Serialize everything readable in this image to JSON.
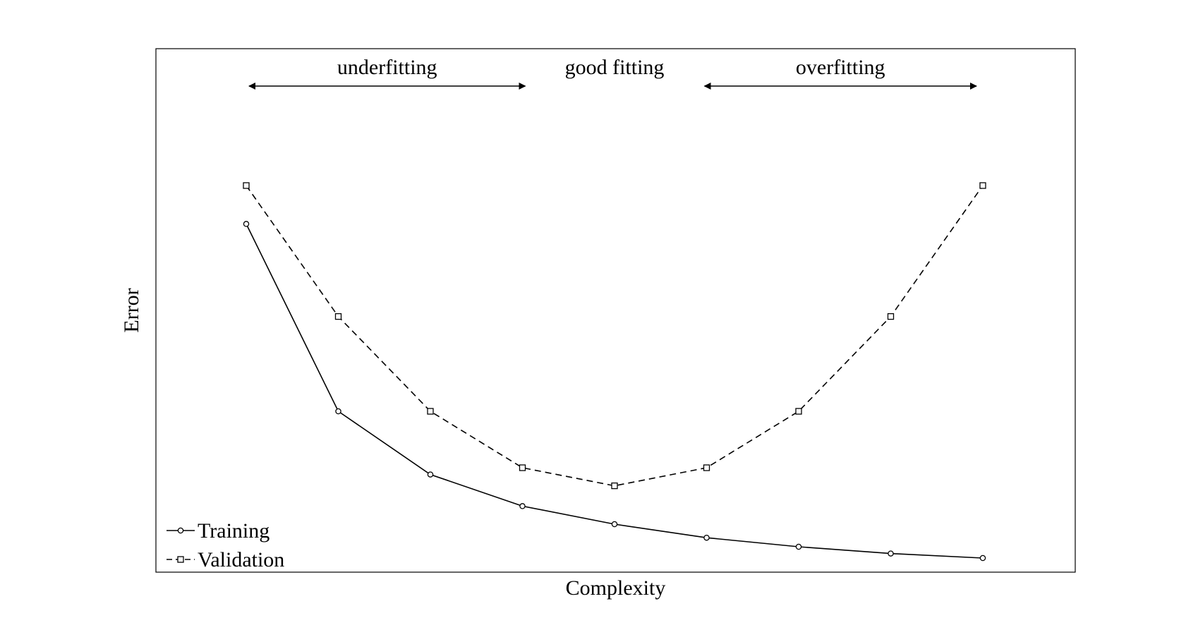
{
  "chart_data": {
    "type": "line",
    "title": "",
    "xlabel": "Complexity",
    "ylabel": "Error",
    "x": [
      1,
      2,
      3,
      4,
      5,
      6,
      7,
      8,
      9
    ],
    "xlim": [
      0,
      10
    ],
    "ylim": [
      0,
      100
    ],
    "ticks_shown": false,
    "grid": false,
    "legend_position": "bottom-left",
    "series": [
      {
        "name": "Training",
        "line_style": "solid",
        "marker": "circle",
        "color": "#000000",
        "values": [
          79,
          37.5,
          23.5,
          16.5,
          12.5,
          9.5,
          7.5,
          6,
          5
        ]
      },
      {
        "name": "Validation",
        "line_style": "dashed",
        "marker": "square",
        "color": "#000000",
        "values": [
          87.5,
          58.5,
          37.5,
          25,
          21,
          25,
          37.5,
          58.5,
          87.5
        ]
      }
    ],
    "annotations": [
      {
        "text": "underfitting",
        "arrow": "double",
        "x_start": 1,
        "x_end": 4
      },
      {
        "text": "good fitting",
        "arrow": "none",
        "x_start": 4,
        "x_end": 6
      },
      {
        "text": "overfitting",
        "arrow": "double",
        "x_start": 6,
        "x_end": 9
      }
    ]
  }
}
